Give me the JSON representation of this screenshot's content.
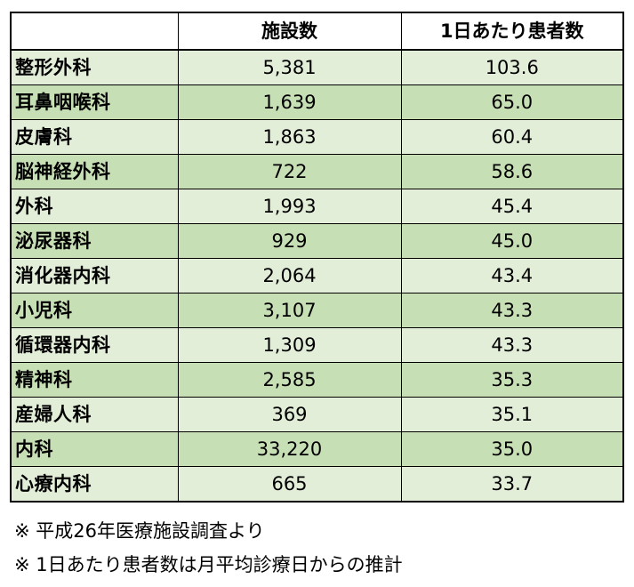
{
  "table": {
    "columns": [
      "",
      "施設数",
      "1日あたり患者数"
    ],
    "rows": [
      {
        "department": "整形外科",
        "facilities": "5,381",
        "patients_per_day": "103.6"
      },
      {
        "department": "耳鼻咽喉科",
        "facilities": "1,639",
        "patients_per_day": "65.0"
      },
      {
        "department": "皮膚科",
        "facilities": "1,863",
        "patients_per_day": "60.4"
      },
      {
        "department": "脳神経外科",
        "facilities": "722",
        "patients_per_day": "58.6"
      },
      {
        "department": "外科",
        "facilities": "1,993",
        "patients_per_day": "45.4"
      },
      {
        "department": "泌尿器科",
        "facilities": "929",
        "patients_per_day": "45.0"
      },
      {
        "department": "消化器内科",
        "facilities": "2,064",
        "patients_per_day": "43.4"
      },
      {
        "department": "小児科",
        "facilities": "3,107",
        "patients_per_day": "43.3"
      },
      {
        "department": "循環器内科",
        "facilities": "1,309",
        "patients_per_day": "43.3"
      },
      {
        "department": "精神科",
        "facilities": "2,585",
        "patients_per_day": "35.3"
      },
      {
        "department": "産婦人科",
        "facilities": "369",
        "patients_per_day": "35.1"
      },
      {
        "department": "内科",
        "facilities": "33,220",
        "patients_per_day": "35.0"
      },
      {
        "department": "心療内科",
        "facilities": "665",
        "patients_per_day": "33.7"
      }
    ]
  },
  "notes": [
    "※ 平成26年医療施設調査より",
    "※ 1日あたり患者数は月平均診療日からの推計"
  ],
  "colors": {
    "row_light": "#e3eed9",
    "row_dark": "#c7dfb5",
    "border": "#000000",
    "header_bg": "#ffffff"
  }
}
